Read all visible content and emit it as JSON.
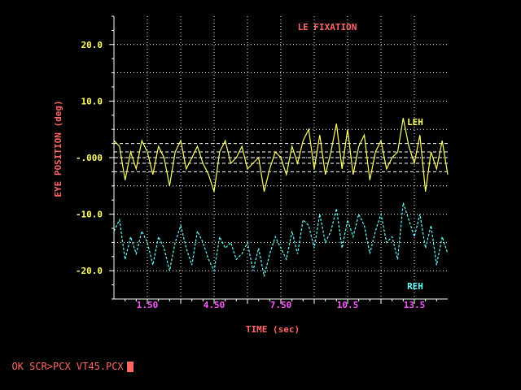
{
  "colors": {
    "background": "#000000",
    "axis": "#ffffff",
    "grid": "#ffffff",
    "title": "#ff6666",
    "ylabel": "#ff6666",
    "xlabel": "#ff6666",
    "ytick": "#ffff66",
    "xtick": "#ff55ff",
    "leh": "#ffff66",
    "reh": "#66ffff",
    "fixation": "#ffffff",
    "prompt": "#ff6666"
  },
  "prompt": {
    "text": "OK SCR>PCX VT45.PCX"
  },
  "chart_data": {
    "type": "line",
    "title": "LE FIXATION",
    "xlabel": "TIME (sec)",
    "ylabel": "EYE POSITION (deg)",
    "xlim": [
      0,
      15
    ],
    "ylim": [
      -25,
      25
    ],
    "x_ticks": [
      1.5,
      4.5,
      7.5,
      10.5,
      13.5
    ],
    "x_tick_labels": [
      "1.50",
      "4.50",
      "7.50",
      "10.5",
      "13.5"
    ],
    "y_ticks": [
      20,
      10,
      0,
      -10,
      -20
    ],
    "y_tick_labels": [
      "20.0",
      "10.0",
      "-.000",
      "-10.0",
      "-20.0"
    ],
    "grid": true,
    "reference_lines": [
      2.5,
      1.0,
      0.0,
      -1.0,
      -2.5
    ],
    "series": [
      {
        "name": "LEH",
        "style": "solid",
        "x": [
          0,
          0.25,
          0.5,
          0.75,
          1,
          1.25,
          1.5,
          1.75,
          2,
          2.25,
          2.5,
          2.75,
          3,
          3.25,
          3.5,
          3.75,
          4,
          4.25,
          4.5,
          4.75,
          5,
          5.25,
          5.5,
          5.75,
          6,
          6.25,
          6.5,
          6.75,
          7,
          7.25,
          7.5,
          7.75,
          8,
          8.25,
          8.5,
          8.75,
          9,
          9.25,
          9.5,
          9.75,
          10,
          10.25,
          10.5,
          10.75,
          11,
          11.25,
          11.5,
          11.75,
          12,
          12.25,
          12.5,
          12.75,
          13,
          13.25,
          13.5,
          13.75,
          14,
          14.25,
          14.5,
          14.75,
          15
        ],
        "y": [
          3,
          2,
          -4,
          1,
          -2,
          3,
          1,
          -3,
          2,
          0,
          -5,
          1,
          3,
          -2,
          0,
          2,
          -1,
          -3,
          -6,
          1,
          3,
          -1,
          0,
          2,
          -2,
          -1,
          0,
          -6,
          -2,
          1,
          0,
          -3,
          2,
          -1,
          3,
          5,
          -2,
          4,
          -3,
          1,
          6,
          -2,
          5,
          -3,
          2,
          4,
          -4,
          1,
          3,
          -2,
          0,
          1,
          7,
          2,
          -1,
          4,
          -6,
          1,
          -2,
          3,
          -3
        ]
      },
      {
        "name": "REH",
        "style": "dashed",
        "x": [
          0,
          0.25,
          0.5,
          0.75,
          1,
          1.25,
          1.5,
          1.75,
          2,
          2.25,
          2.5,
          2.75,
          3,
          3.25,
          3.5,
          3.75,
          4,
          4.25,
          4.5,
          4.75,
          5,
          5.25,
          5.5,
          5.75,
          6,
          6.25,
          6.5,
          6.75,
          7,
          7.25,
          7.5,
          7.75,
          8,
          8.25,
          8.5,
          8.75,
          9,
          9.25,
          9.5,
          9.75,
          10,
          10.25,
          10.5,
          10.75,
          11,
          11.25,
          11.5,
          11.75,
          12,
          12.25,
          12.5,
          12.75,
          13,
          13.25,
          13.5,
          13.75,
          14,
          14.25,
          14.5,
          14.75,
          15
        ],
        "y": [
          -13,
          -11,
          -18,
          -14,
          -17,
          -13,
          -15,
          -19,
          -14,
          -16,
          -20,
          -15,
          -12,
          -16,
          -19,
          -13,
          -15,
          -18,
          -20,
          -14,
          -16,
          -15,
          -18,
          -17,
          -15,
          -20,
          -16,
          -21,
          -17,
          -14,
          -16,
          -18,
          -13,
          -17,
          -11,
          -12,
          -16,
          -10,
          -15,
          -13,
          -9,
          -16,
          -11,
          -14,
          -10,
          -12,
          -17,
          -13,
          -10,
          -15,
          -14,
          -18,
          -8,
          -11,
          -14,
          -10,
          -16,
          -12,
          -19,
          -14,
          -17
        ]
      }
    ]
  }
}
